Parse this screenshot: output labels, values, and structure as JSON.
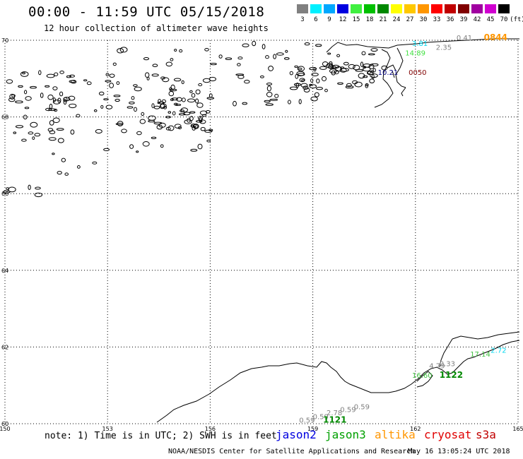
{
  "title": "00:00 - 11:59 UTC 05/15/2018",
  "subtitle": "12 hour collection of altimeter wave heights",
  "legend": {
    "unit": "(ft)",
    "bins": [
      {
        "label": "3",
        "color": "#808080"
      },
      {
        "label": "6",
        "color": "#00f0ff"
      },
      {
        "label": "9",
        "color": "#00a8ff"
      },
      {
        "label": "12",
        "color": "#0000e0"
      },
      {
        "label": "15",
        "color": "#40f040"
      },
      {
        "label": "18",
        "color": "#00c000"
      },
      {
        "label": "21",
        "color": "#008800"
      },
      {
        "label": "24",
        "color": "#ffff00"
      },
      {
        "label": "27",
        "color": "#ffc800"
      },
      {
        "label": "30",
        "color": "#ff9600"
      },
      {
        "label": "33",
        "color": "#ff0000"
      },
      {
        "label": "36",
        "color": "#c00000"
      },
      {
        "label": "39",
        "color": "#800000"
      },
      {
        "label": "42",
        "color": "#a000a0"
      },
      {
        "label": "45",
        "color": "#d000d0"
      },
      {
        "label": "70",
        "color": "#000000"
      }
    ]
  },
  "map": {
    "lon_range": [
      150,
      165
    ],
    "lat_range": [
      60,
      70
    ],
    "lon_ticks": [
      "150",
      "153",
      "156",
      "159",
      "162",
      "165"
    ],
    "lat_ticks": [
      "60",
      "62",
      "64",
      "66",
      "68",
      "70"
    ]
  },
  "observations": [
    {
      "text": "0.41",
      "color": "#808080",
      "lon": 163.2,
      "lat": 70.0
    },
    {
      "text": "0844",
      "color": "#ff9600",
      "lon": 164.0,
      "lat": 70.0,
      "bold": true
    },
    {
      "text": "3.81",
      "color": "#00d8f0",
      "lon": 161.9,
      "lat": 69.85
    },
    {
      "text": "2.35",
      "color": "#808080",
      "lon": 162.6,
      "lat": 69.75
    },
    {
      "text": "14.89",
      "color": "#40e040",
      "lon": 161.7,
      "lat": 69.6
    },
    {
      "text": "10.21",
      "color": "#000080",
      "lon": 160.9,
      "lat": 69.1
    },
    {
      "text": "0050",
      "color": "#800000",
      "lon": 161.8,
      "lat": 69.1
    },
    {
      "text": "17.14",
      "color": "#40c040",
      "lon": 163.6,
      "lat": 61.75
    },
    {
      "text": "2.72",
      "color": "#00d8f0",
      "lon": 164.2,
      "lat": 61.85
    },
    {
      "text": "4.79",
      "color": "#808080",
      "lon": 162.4,
      "lat": 61.45
    },
    {
      "text": "0.33",
      "color": "#808080",
      "lon": 162.7,
      "lat": 61.5
    },
    {
      "text": "16.60",
      "color": "#40c040",
      "lon": 161.9,
      "lat": 61.2
    },
    {
      "text": "1122",
      "color": "#008800",
      "lon": 162.7,
      "lat": 61.2,
      "bold": true
    },
    {
      "text": "0.59",
      "color": "#808080",
      "lon": 158.6,
      "lat": 60.03
    },
    {
      "text": "0.59",
      "color": "#808080",
      "lon": 159.0,
      "lat": 60.12
    },
    {
      "text": "2.78",
      "color": "#808080",
      "lon": 159.4,
      "lat": 60.22
    },
    {
      "text": "0.59",
      "color": "#808080",
      "lon": 159.8,
      "lat": 60.3
    },
    {
      "text": "0.59",
      "color": "#808080",
      "lon": 160.2,
      "lat": 60.38
    },
    {
      "text": "1121",
      "color": "#008800",
      "lon": 159.3,
      "lat": 60.03,
      "bold": true
    }
  ],
  "note": "note: 1) Time is in UTC; 2) SWH is in feet",
  "satellites": [
    {
      "name": "jason2",
      "color": "#0000e0"
    },
    {
      "name": "jason3",
      "color": "#00a000"
    },
    {
      "name": "altika",
      "color": "#ff9600"
    },
    {
      "name": "cryosat",
      "color": "#e00000"
    },
    {
      "name": "s3a",
      "color": "#c00000"
    }
  ],
  "credit": "NOAA/NESDIS Center for Satellite Applications and Research",
  "timestamp": "May 16 13:05:24 UTC 2018"
}
